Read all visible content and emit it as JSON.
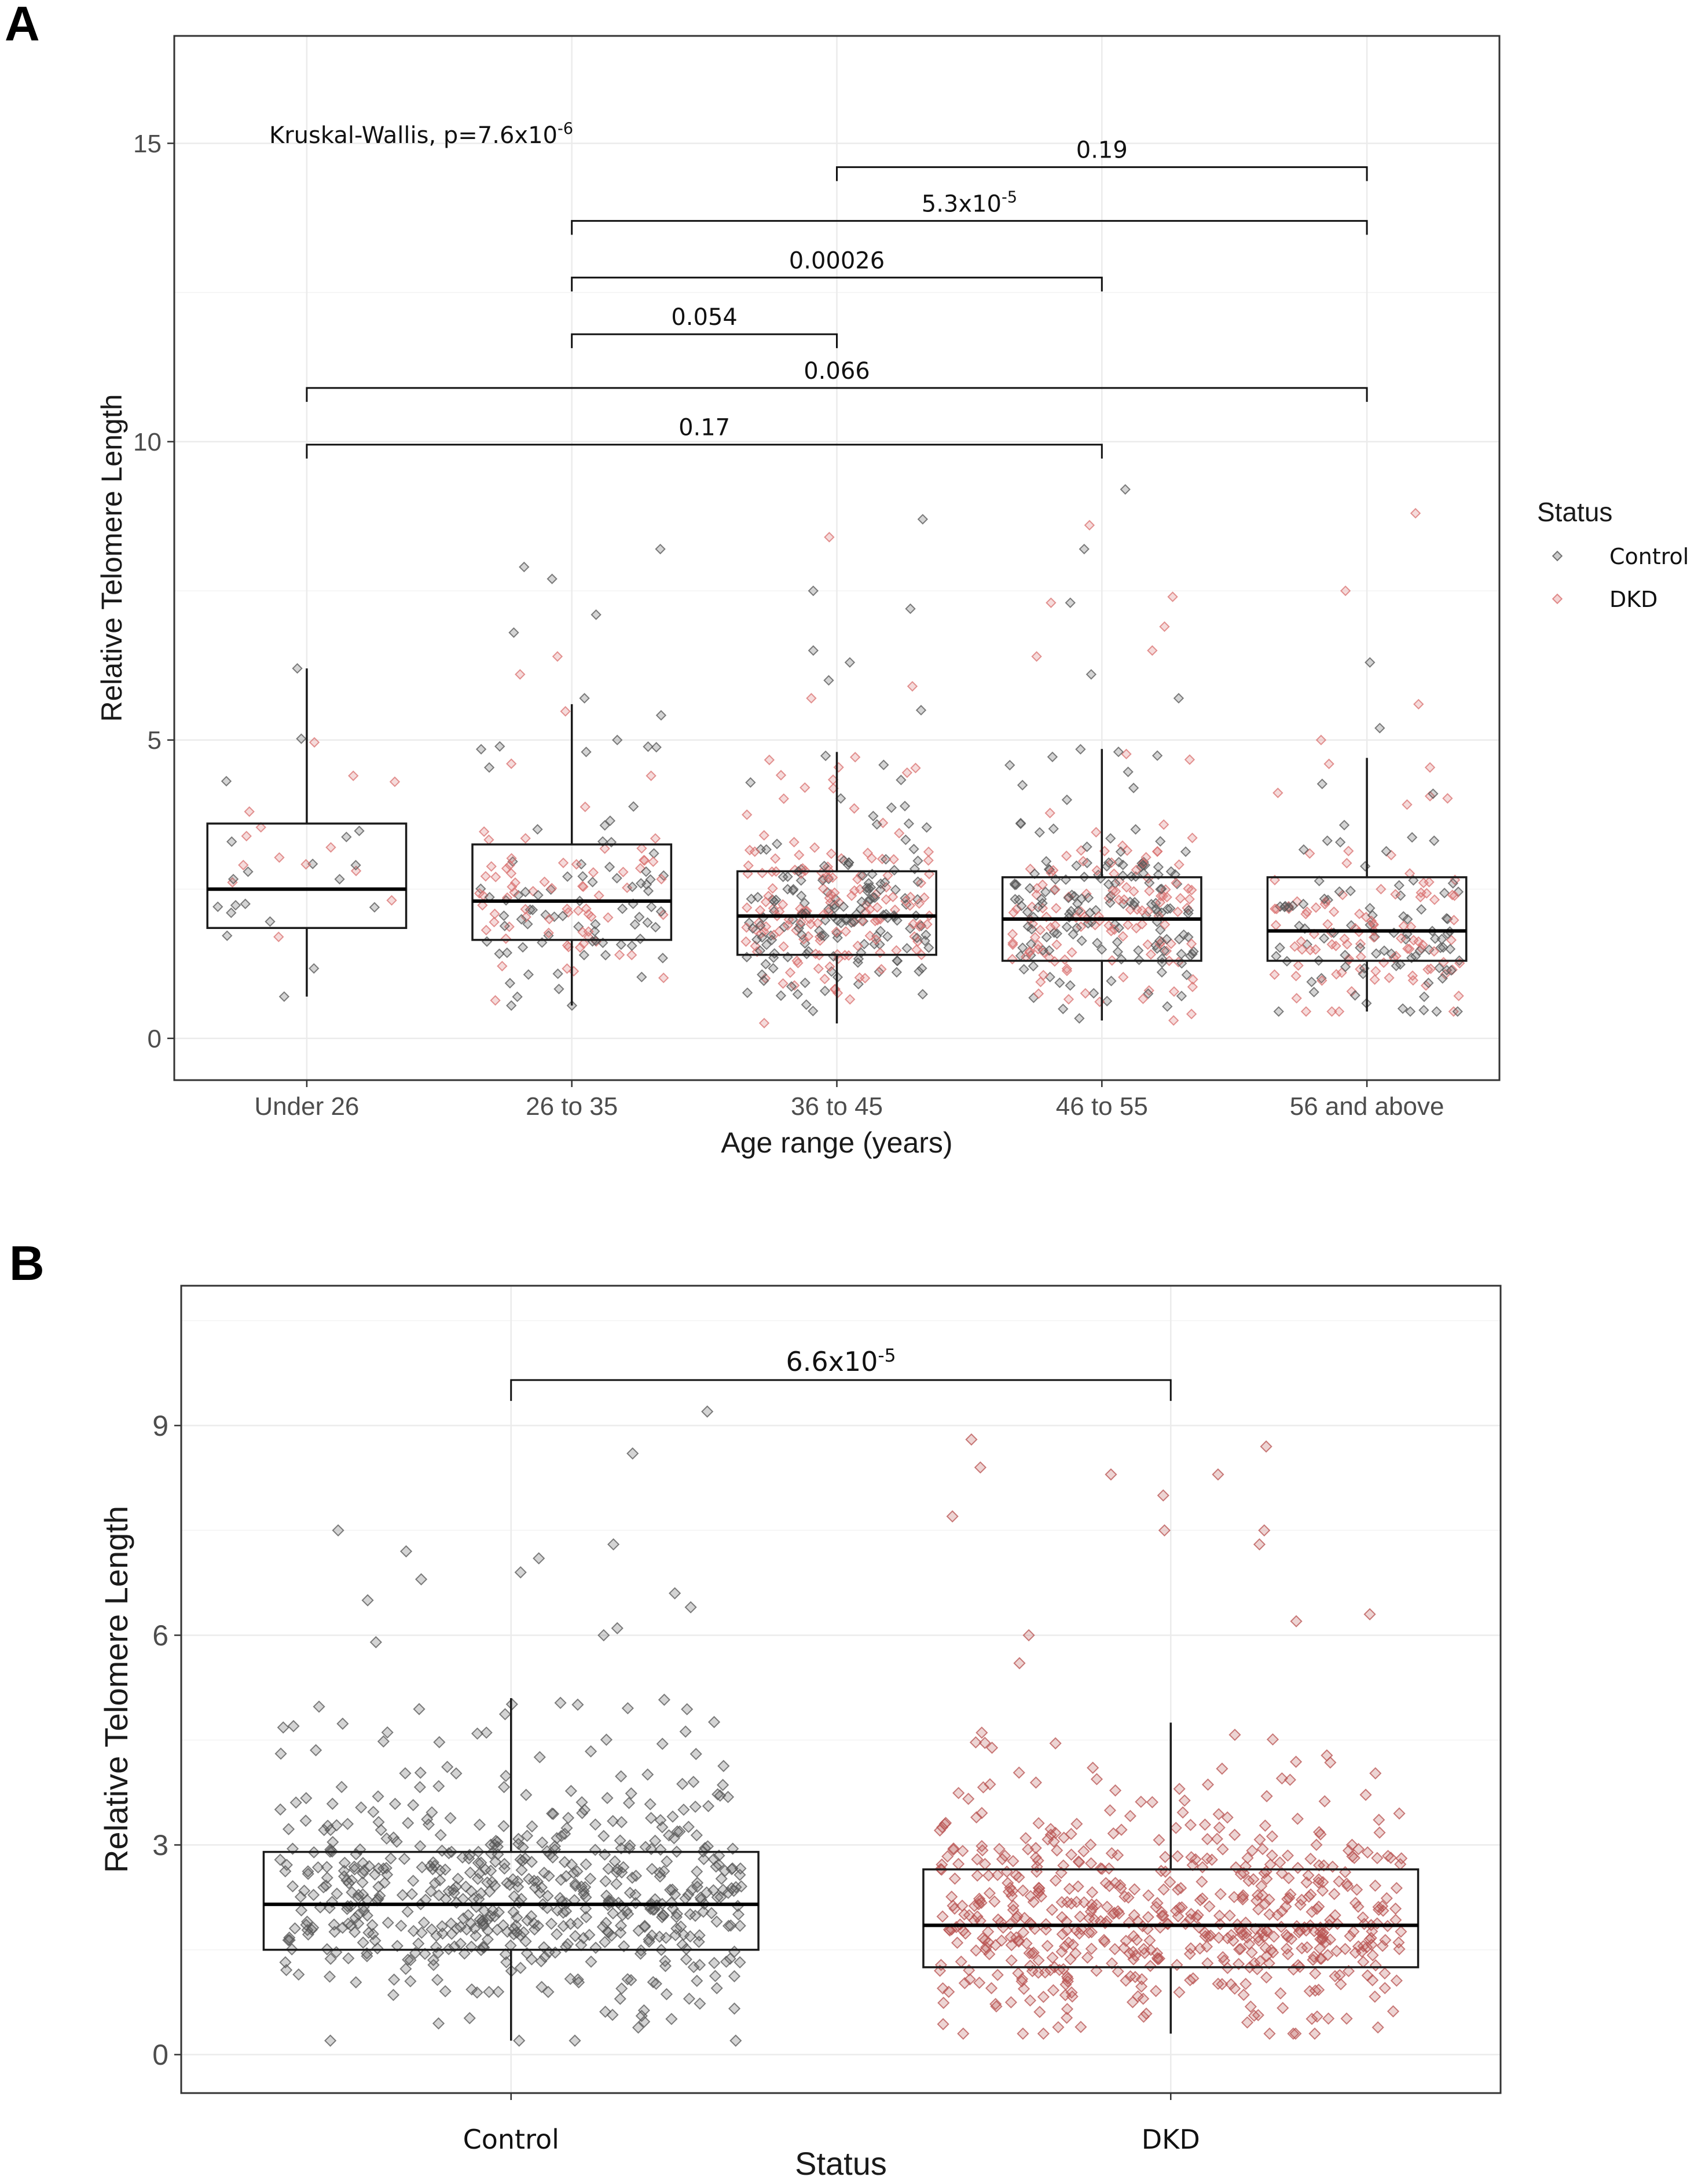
{
  "panels": {
    "a": "A",
    "b": "B"
  },
  "chart_data": [
    {
      "type": "box",
      "id": "A",
      "title": "",
      "xlabel": "Age range (years)",
      "ylabel": "Relative Telomere Length",
      "ylim": [
        -0.7,
        16.8
      ],
      "yticks": [
        0,
        5,
        10,
        15
      ],
      "grid": true,
      "categories": [
        "Under 26",
        "26 to 35",
        "36 to 45",
        "46 to 55",
        "56 and above"
      ],
      "boxes": [
        {
          "category": "Under 26",
          "q1": 1.85,
          "median": 2.5,
          "q3": 3.6,
          "whisker_low": 0.7,
          "whisker_high": 6.2,
          "n_points": 30,
          "spread": 1.1,
          "high_points": [
            4.3,
            6.2,
            4.4,
            3.8
          ]
        },
        {
          "category": "26 to 35",
          "q1": 1.65,
          "median": 2.3,
          "q3": 3.25,
          "whisker_low": 0.55,
          "whisker_high": 5.6,
          "n_points": 150,
          "spread": 1.0,
          "high_points": [
            8.2,
            7.9,
            7.7,
            7.1,
            6.8,
            6.4,
            6.1,
            5.7,
            4.8,
            5.0
          ]
        },
        {
          "category": "36 to 45",
          "q1": 1.4,
          "median": 2.05,
          "q3": 2.8,
          "whisker_low": 0.25,
          "whisker_high": 4.8,
          "n_points": 310,
          "spread": 0.9,
          "high_points": [
            8.7,
            8.4,
            7.5,
            7.2,
            6.5,
            6.3,
            6.0,
            5.9,
            5.7,
            5.5
          ]
        },
        {
          "category": "46 to 55",
          "q1": 1.3,
          "median": 2.0,
          "q3": 2.7,
          "whisker_low": 0.3,
          "whisker_high": 4.85,
          "n_points": 280,
          "spread": 0.9,
          "high_points": [
            9.2,
            8.6,
            8.2,
            7.4,
            7.3,
            7.3,
            6.9,
            6.5,
            6.4,
            6.1,
            5.7
          ]
        },
        {
          "category": "56 and above",
          "q1": 1.3,
          "median": 1.8,
          "q3": 2.7,
          "whisker_low": 0.45,
          "whisker_high": 4.7,
          "n_points": 190,
          "spread": 0.85,
          "high_points": [
            8.8,
            7.5,
            6.3,
            5.6,
            5.2,
            5.0,
            4.6
          ]
        }
      ],
      "series": [
        {
          "name": "Control",
          "color": "#555555"
        },
        {
          "name": "DKD",
          "color": "#d9706f"
        }
      ],
      "legend": {
        "title": "Status",
        "entries": [
          "Control",
          "DKD"
        ],
        "placement": "right"
      },
      "test_label": "Kruskal-Wallis, p=7.6x10",
      "test_exp": "-6",
      "comparisons": [
        {
          "from": "36 to 45",
          "to": "56 and above",
          "y": 14.6,
          "base": "0.19",
          "exp": ""
        },
        {
          "from": "26 to 35",
          "to": "56 and above",
          "y": 13.7,
          "base": "5.3x10",
          "exp": "-5"
        },
        {
          "from": "26 to 35",
          "to": "46 to 55",
          "y": 12.75,
          "base": "0.00026",
          "exp": ""
        },
        {
          "from": "26 to 35",
          "to": "36 to 45",
          "y": 11.8,
          "base": "0.054",
          "exp": ""
        },
        {
          "from": "Under 26",
          "to": "56 and above",
          "y": 10.9,
          "base": "0.066",
          "exp": ""
        },
        {
          "from": "Under 26",
          "to": "46 to 55",
          "y": 9.95,
          "base": "0.17",
          "exp": ""
        }
      ]
    },
    {
      "type": "box",
      "id": "B",
      "title": "",
      "xlabel": "Status",
      "ylabel": "Relative Telomere Length",
      "ylim": [
        -0.55,
        11.0
      ],
      "yticks": [
        0,
        3,
        6,
        9
      ],
      "grid": true,
      "categories": [
        "Control",
        "DKD"
      ],
      "boxes": [
        {
          "category": "Control",
          "q1": 1.5,
          "median": 2.15,
          "q3": 2.9,
          "whisker_low": 0.2,
          "whisker_high": 5.1,
          "n_points": 600,
          "spread": 0.95,
          "color": "#555555",
          "high_points": [
            9.2,
            8.6,
            7.5,
            7.3,
            7.2,
            7.1,
            6.9,
            6.8,
            6.6,
            6.5,
            6.4,
            6.1,
            6.0,
            5.9
          ]
        },
        {
          "category": "DKD",
          "q1": 1.25,
          "median": 1.85,
          "q3": 2.65,
          "whisker_low": 0.3,
          "whisker_high": 4.75,
          "n_points": 600,
          "spread": 0.95,
          "color": "#b85250",
          "high_points": [
            8.8,
            8.7,
            8.4,
            8.3,
            8.3,
            8.0,
            7.7,
            7.5,
            7.5,
            7.3,
            6.3,
            6.2,
            6.0,
            5.6
          ]
        }
      ],
      "comparisons": [
        {
          "from": "Control",
          "to": "DKD",
          "y": 9.65,
          "base": "6.6x10",
          "exp": "-5"
        }
      ]
    }
  ]
}
